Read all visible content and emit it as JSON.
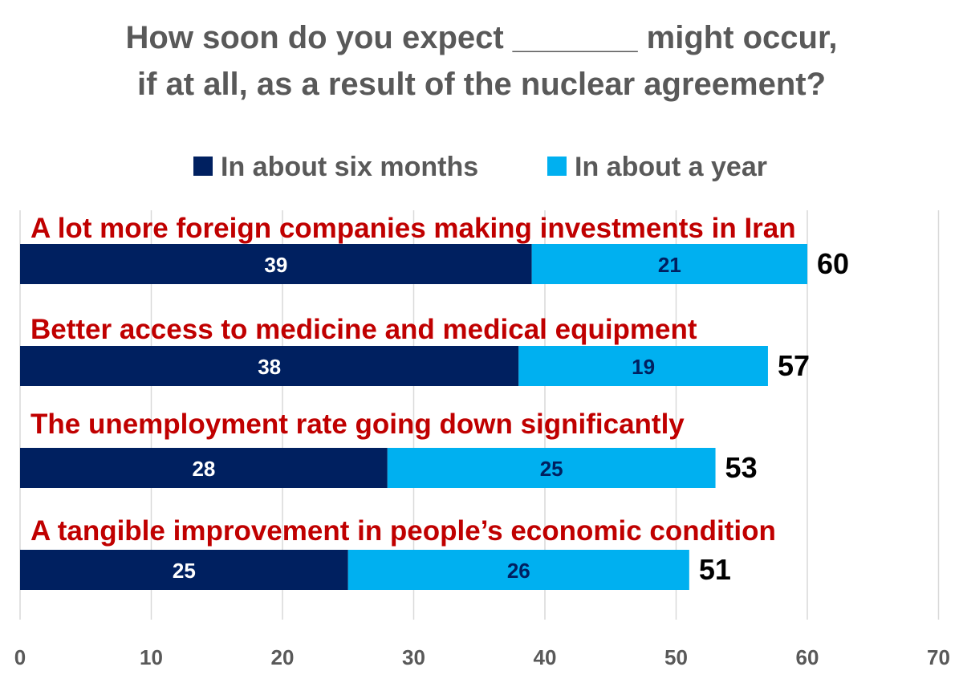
{
  "chart_data": {
    "type": "bar",
    "orientation": "horizontal",
    "stacked": true,
    "title_lines": [
      "How soon do you expect _______ might occur,",
      "if at all, as a result of the nuclear agreement?"
    ],
    "categories": [
      "A lot more foreign companies making investments in Iran",
      "Better access to medicine and medical equipment",
      "The unemployment rate going down significantly",
      "A tangible improvement in people’s economic condition"
    ],
    "series": [
      {
        "name": "In about six months",
        "color": "#002060",
        "label_color": "#ffffff",
        "values": [
          39,
          38,
          28,
          25
        ]
      },
      {
        "name": "In about a year",
        "color": "#00b0f0",
        "label_color": "#002060",
        "values": [
          21,
          19,
          25,
          26
        ]
      }
    ],
    "totals": [
      60,
      57,
      53,
      51
    ],
    "xlim": [
      0,
      70
    ],
    "xticks": [
      0,
      10,
      20,
      30,
      40,
      50,
      60,
      70
    ],
    "grid": true,
    "legend_position": "top",
    "colors": {
      "category_label": "#c00000",
      "grid": "#d9d9d9",
      "text": "#595959"
    }
  }
}
